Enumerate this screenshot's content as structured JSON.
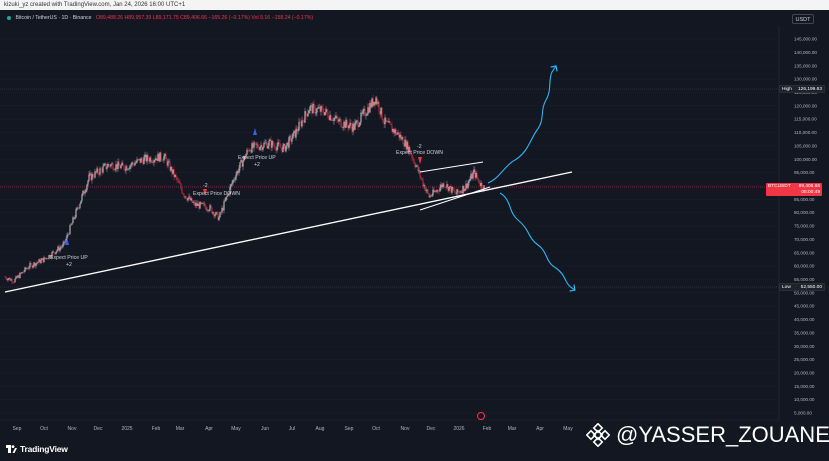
{
  "header": {
    "attribution": "kizuki_yz created with TradingView.com, Jan 24, 2026 16:00 UTC+1"
  },
  "symbol": {
    "name": "Bitcoin / TetherUS · 1D · Binance",
    "ohlc": "O89,488.26 H89,957.39 L89,171.75 C89,406.66 −165.26 (−0.17%) Vol 9.16 −158.24 (−0.17%)"
  },
  "currency": "USDT",
  "price_axis": {
    "ticks": [
      "145,000.00",
      "140,000.00",
      "135,000.00",
      "130,000.00",
      "125,000.00",
      "120,000.00",
      "115,000.00",
      "110,000.00",
      "105,000.00",
      "100,000.00",
      "95,000.00",
      "90,000.00",
      "85,000.00",
      "80,000.00",
      "75,000.00",
      "70,000.00",
      "65,000.00",
      "60,000.00",
      "55,000.00",
      "50,000.00",
      "45,000.00",
      "40,000.00",
      "35,000.00",
      "30,000.00",
      "25,000.00",
      "20,000.00",
      "15,000.00",
      "10,000.00",
      "5,000.00"
    ],
    "tick_values": [
      145000,
      140000,
      135000,
      130000,
      125000,
      120000,
      115000,
      110000,
      105000,
      100000,
      95000,
      90000,
      85000,
      80000,
      75000,
      70000,
      65000,
      60000,
      55000,
      50000,
      45000,
      40000,
      35000,
      30000,
      25000,
      20000,
      15000,
      10000,
      5000
    ]
  },
  "time_axis": {
    "labels": [
      "Sep",
      "Oct",
      "Nov",
      "Dec",
      "2025",
      "Feb",
      "Mar",
      "Apr",
      "May",
      "Jun",
      "Jul",
      "Aug",
      "Sep",
      "Oct",
      "Nov",
      "Dec",
      "2026",
      "Feb",
      "Mar",
      "Apr",
      "May"
    ]
  },
  "markers": {
    "high": {
      "label": "High",
      "value": "126,199.63",
      "price": 126199.63
    },
    "low": {
      "label": "Low",
      "value": "52,550.00",
      "price": 52550
    },
    "current": {
      "label": "BTCUSDT",
      "value": "89,406.66",
      "countdown": "08:00:49",
      "price": 89406.66
    }
  },
  "annotations": [
    {
      "text": "Expect Price UP",
      "sub": "+2"
    },
    {
      "text": "Expect Price DOWN",
      "sub": "-2"
    },
    {
      "text": "Expect Price UP",
      "sub": "+2"
    },
    {
      "text": "Expect Price DOWN",
      "sub": "-2"
    }
  ],
  "footer": {
    "brand": "TradingView"
  },
  "watermark": {
    "text": "@YASSER_ZOUANE"
  },
  "colors": {
    "background": "#131722",
    "up": "#ffffff",
    "down": "#f23645",
    "trendline": "#ffffff",
    "projection": "#29b6f6"
  },
  "chart_data": {
    "type": "candlestick",
    "ylim": [
      3000,
      148000
    ],
    "keypoints": [
      {
        "t": 0,
        "v": 56000
      },
      {
        "t": 10,
        "v": 54500
      },
      {
        "t": 25,
        "v": 60000
      },
      {
        "t": 40,
        "v": 62500
      },
      {
        "t": 60,
        "v": 68000
      },
      {
        "t": 70,
        "v": 78000
      },
      {
        "t": 85,
        "v": 93000
      },
      {
        "t": 105,
        "v": 98000
      },
      {
        "t": 120,
        "v": 97000
      },
      {
        "t": 140,
        "v": 100000
      },
      {
        "t": 160,
        "v": 101000
      },
      {
        "t": 180,
        "v": 87000
      },
      {
        "t": 190,
        "v": 83000
      },
      {
        "t": 205,
        "v": 82000
      },
      {
        "t": 215,
        "v": 78000
      },
      {
        "t": 230,
        "v": 93000
      },
      {
        "t": 245,
        "v": 104000
      },
      {
        "t": 265,
        "v": 106000
      },
      {
        "t": 280,
        "v": 104000
      },
      {
        "t": 290,
        "v": 109000
      },
      {
        "t": 305,
        "v": 119000
      },
      {
        "t": 320,
        "v": 118000
      },
      {
        "t": 335,
        "v": 114000
      },
      {
        "t": 350,
        "v": 112000
      },
      {
        "t": 360,
        "v": 117000
      },
      {
        "t": 372,
        "v": 123000
      },
      {
        "t": 380,
        "v": 114000
      },
      {
        "t": 395,
        "v": 109000
      },
      {
        "t": 405,
        "v": 104000
      },
      {
        "t": 418,
        "v": 92000
      },
      {
        "t": 425,
        "v": 86000
      },
      {
        "t": 432,
        "v": 88000
      },
      {
        "t": 440,
        "v": 91000
      },
      {
        "t": 452,
        "v": 87000
      },
      {
        "t": 462,
        "v": 90000
      },
      {
        "t": 470,
        "v": 95000
      },
      {
        "t": 476,
        "v": 91000
      },
      {
        "t": 480,
        "v": 89400
      }
    ]
  }
}
